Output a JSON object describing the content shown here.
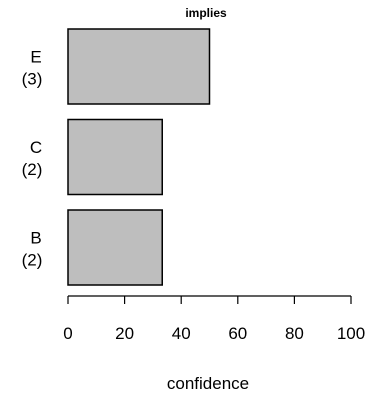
{
  "chart_data": {
    "type": "bar",
    "orientation": "horizontal",
    "title": "implies",
    "xlabel": "confidence",
    "ylabel": "",
    "categories": [
      {
        "name": "E",
        "count": "(3)"
      },
      {
        "name": "C",
        "count": "(2)"
      },
      {
        "name": "B",
        "count": "(2)"
      }
    ],
    "values": [
      50,
      33.3,
      33.3
    ],
    "xlim": [
      0,
      100
    ],
    "xticks": [
      "0",
      "20",
      "40",
      "60",
      "80",
      "100"
    ],
    "bar_color": "#bebebe",
    "border_color": "#000000",
    "grid": false,
    "legend": "none"
  }
}
